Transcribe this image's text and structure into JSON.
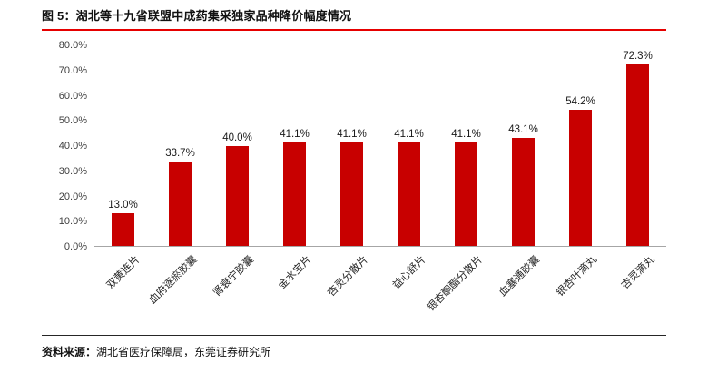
{
  "header": {
    "title": "图 5：湖北等十九省联盟中成药集采独家品种降价幅度情况"
  },
  "footer": {
    "source_label": "资料来源：",
    "source_text": "湖北省医疗保障局，东莞证券研究所"
  },
  "colors": {
    "accent_red": "#e60000",
    "bar_red": "#c80000"
  },
  "chart_data": {
    "type": "bar",
    "title": "图 5：湖北等十九省联盟中成药集采独家品种降价幅度情况",
    "categories": [
      "双黄连片",
      "血府逐瘀胶囊",
      "肾衰宁胶囊",
      "金水宝片",
      "杏灵分散片",
      "益心舒片",
      "银杏酮酯分散片",
      "血塞通胶囊",
      "银杏叶滴丸",
      "杏灵滴丸"
    ],
    "values": [
      13.0,
      33.7,
      40.0,
      41.1,
      41.1,
      41.1,
      41.1,
      43.1,
      54.2,
      72.3
    ],
    "data_labels": [
      "13.0%",
      "33.7%",
      "40.0%",
      "41.1%",
      "41.1%",
      "41.1%",
      "41.1%",
      "43.1%",
      "54.2%",
      "72.3%"
    ],
    "xlabel": "",
    "ylabel": "",
    "ylim": [
      0,
      80
    ],
    "yticks": [
      "0.0%",
      "10.0%",
      "20.0%",
      "30.0%",
      "40.0%",
      "50.0%",
      "60.0%",
      "70.0%",
      "80.0%"
    ],
    "bar_color": "#c80000",
    "legend": "none",
    "grid": "off"
  }
}
